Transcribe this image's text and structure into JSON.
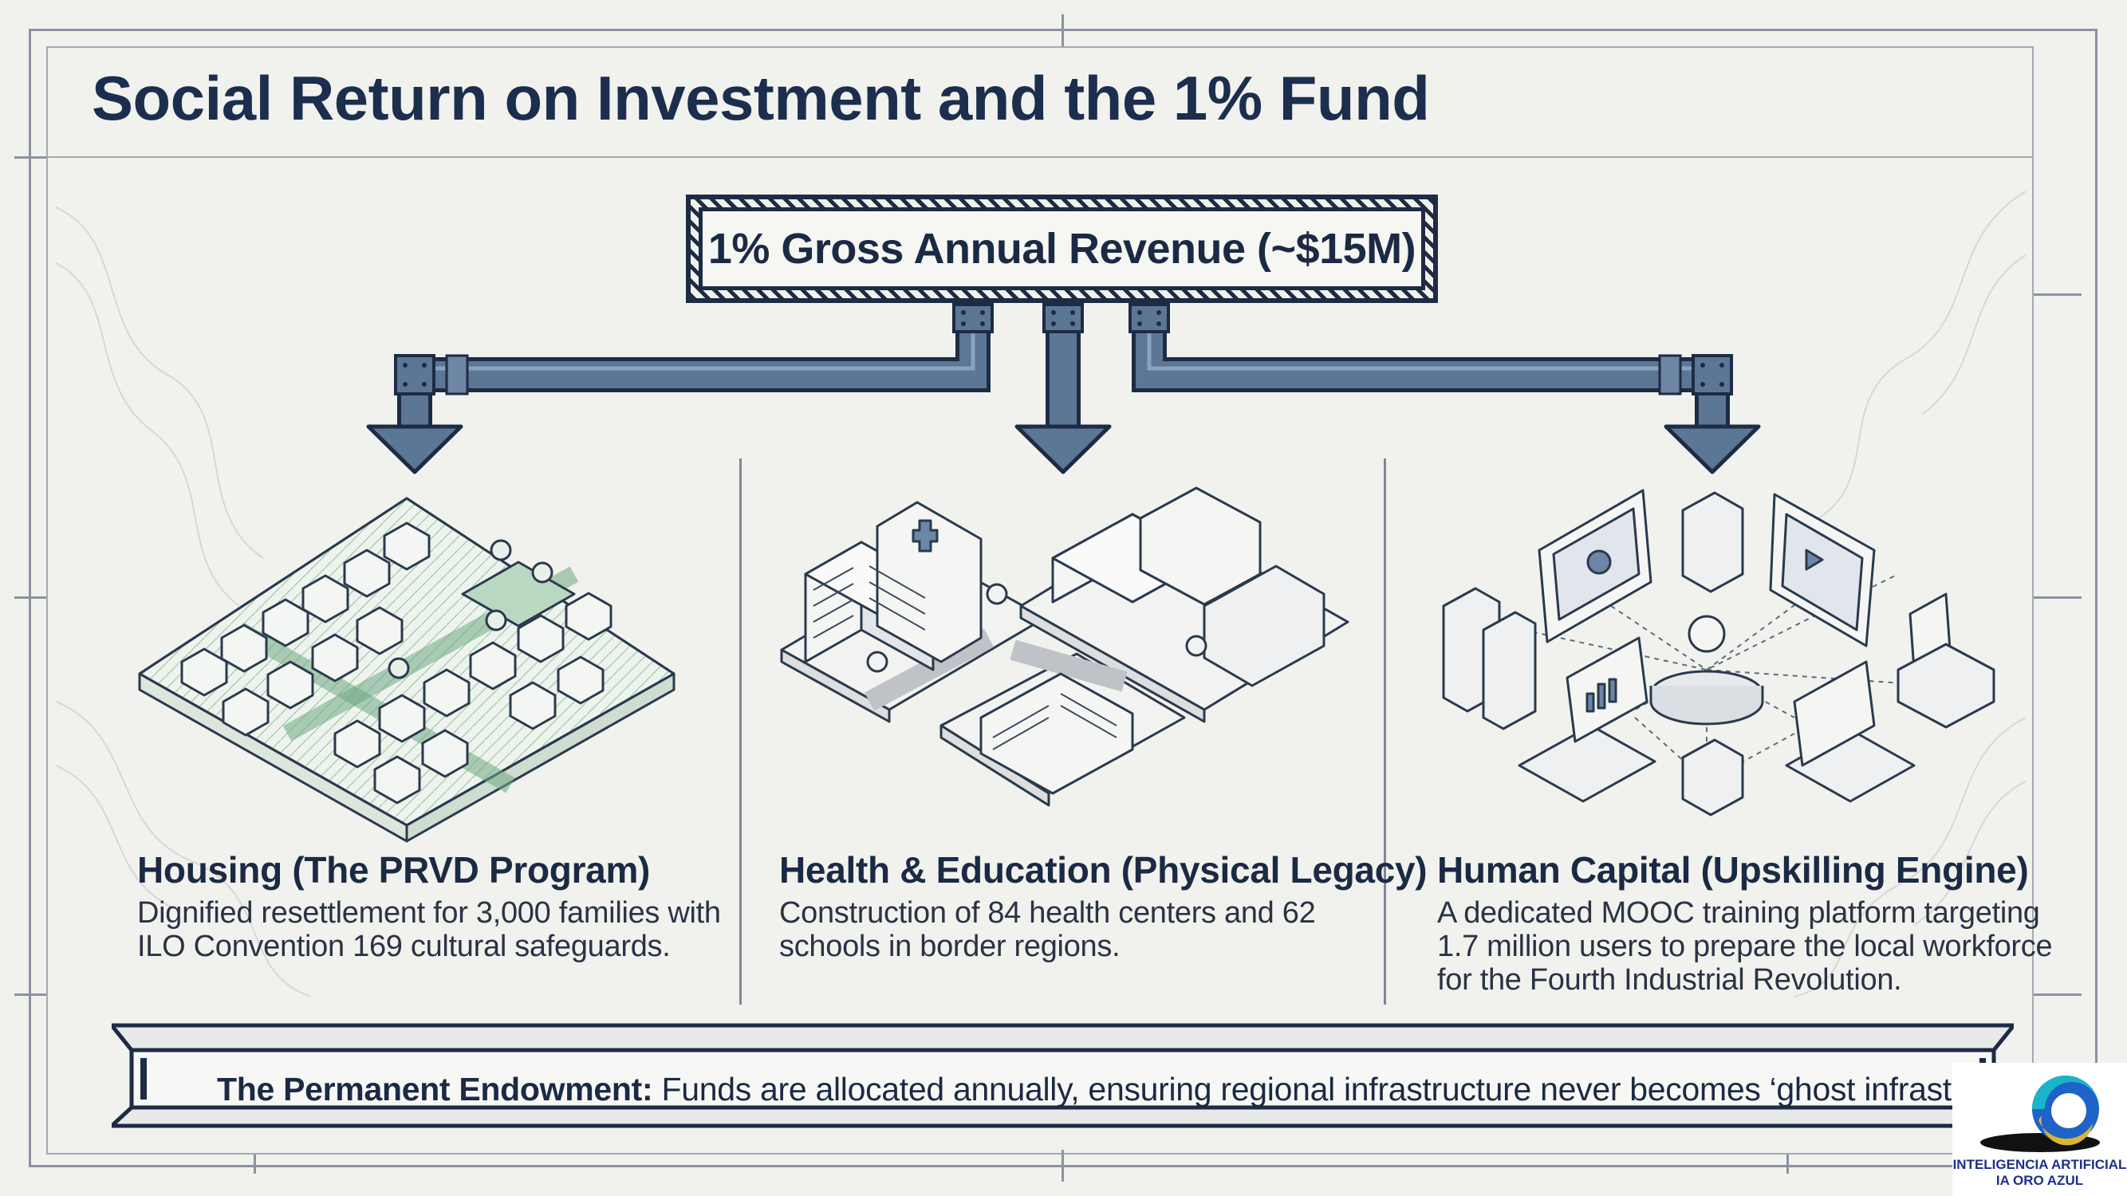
{
  "title": "Social Return on Investment and the 1% Fund",
  "source_box": {
    "label": "1% Gross Annual Revenue (~$15M)"
  },
  "columns": [
    {
      "heading": "Housing (The PRVD Program)",
      "line1": "Dignified resettlement for 3,000 families with",
      "line2": "ILO Convention 169 cultural safeguards.",
      "illustration": "isometric-housing-neighborhood"
    },
    {
      "heading": "Health & Education (Physical Legacy)",
      "line1": "Construction of 84 health centers and 62",
      "line2": "schools in border regions.",
      "illustration": "isometric-hospital-and-schools"
    },
    {
      "heading": "Human Capital (Upskilling Engine)",
      "line1": "A dedicated MOOC training platform targeting",
      "line2": "1.7 million users to prepare the local workforce",
      "line3": "for the Fourth Industrial Revolution.",
      "illustration": "isometric-network-computers-servers"
    }
  ],
  "endowment": {
    "lead": "The Permanent Endowment:",
    "text": " Funds are allocated annually, ensuring regional infrastructure never becomes ‘ghost infrastructure’."
  },
  "logo": {
    "line1": "INTELIGENCIA ARTIFICIAL",
    "line2": "IA ORO AZUL"
  },
  "colors": {
    "navy": "#1b2a44",
    "pipe_blue": "#5c7696",
    "green": "#6fa884",
    "background": "#f1f2ee"
  }
}
